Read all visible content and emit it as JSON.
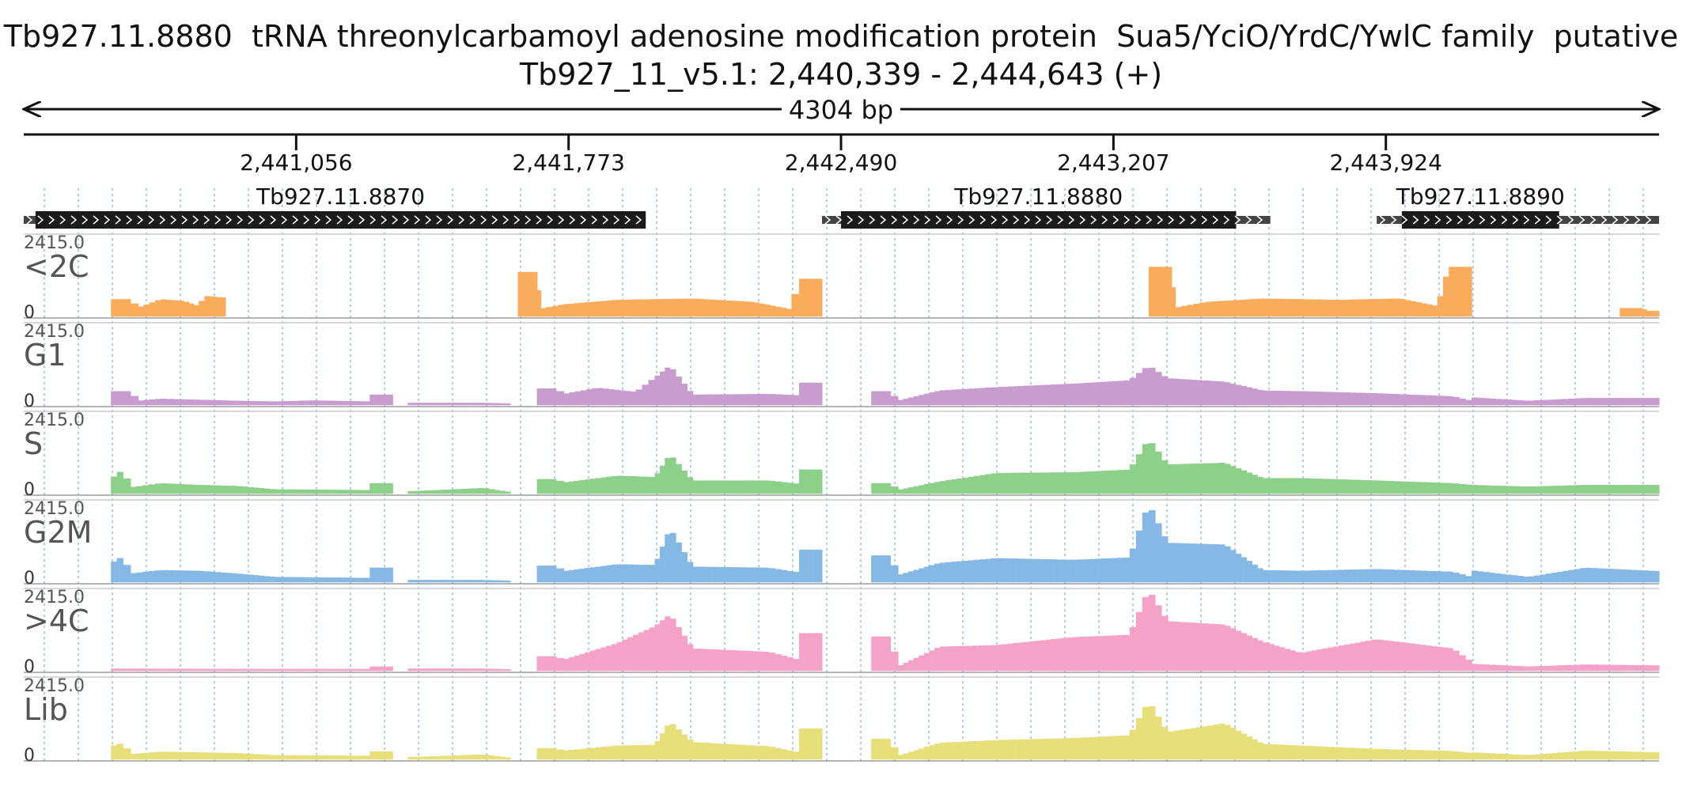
{
  "header": {
    "title": "Tb927.11.8880  tRNA threonylcarbamoyl adenosine modification protein  Sua5/YciO/YrdC/YwlC family  putative",
    "location": "Tb927_11_v5.1: 2,440,339 - 2,444,643 (+)"
  },
  "chart_data": {
    "type": "area",
    "title": "Tb927.11.8880  tRNA threonylcarbamoyl adenosine modification protein  Sua5/YciO/YrdC/YwlC family  putative",
    "region": {
      "chrom": "Tb927_11_v5.1",
      "start": 2440339,
      "end": 2444643,
      "strand": "+",
      "length_label": "4304 bp"
    },
    "x_ticks": [
      {
        "value": 2441056,
        "label": "2,441,056"
      },
      {
        "value": 2441773,
        "label": "2,441,773"
      },
      {
        "value": 2442490,
        "label": "2,442,490"
      },
      {
        "value": 2443207,
        "label": "2,443,207"
      },
      {
        "value": 2443924,
        "label": "2,443,924"
      }
    ],
    "genes": [
      {
        "name": "Tb927.11.8870",
        "start": 2440339,
        "end": 2441976,
        "cds_start": 2440370,
        "cds_end": 2441976
      },
      {
        "name": "Tb927.11.8880",
        "start": 2442440,
        "end": 2443620,
        "cds_start": 2442490,
        "cds_end": 2443530
      },
      {
        "name": "Tb927.11.8890",
        "start": 2443900,
        "end": 2444643,
        "cds_start": 2443966,
        "cds_end": 2444380
      }
    ],
    "ylim": [
      0,
      2415.0
    ],
    "y_max_label": "2415.0",
    "y_min_label": "0",
    "series": [
      {
        "name": "<2C",
        "color": "#f9ad5c",
        "segments": [
          {
            "x": [
              2440569,
              2440620,
              2440640,
              2440700,
              2440760,
              2440800,
              2440815,
              2440860,
              2440870
            ],
            "y": [
              500,
              500,
              250,
              500,
              450,
              300,
              600,
              550,
              550
            ]
          },
          {
            "x": [
              2441640,
              2441690,
              2441700,
              2441760,
              2441900,
              2442100,
              2442260,
              2442360,
              2442380,
              2442440
            ],
            "y": [
              1300,
              1300,
              220,
              350,
              480,
              520,
              420,
              200,
              1100,
              1100
            ]
          },
          {
            "x": [
              2443300,
              2443360,
              2443370,
              2443450,
              2443600,
              2443800,
              2443960,
              2444060,
              2444090,
              2444150
            ],
            "y": [
              1450,
              1450,
              250,
              420,
              520,
              480,
              520,
              300,
              1450,
              1450
            ]
          },
          {
            "x": [
              2444540,
              2444600,
              2444610,
              2444643
            ],
            "y": [
              240,
              240,
              160,
              160
            ]
          }
        ]
      },
      {
        "name": "G1",
        "color": "#c99cd0",
        "segments": [
          {
            "x": [
              2440569,
              2440620,
              2440640,
              2440700,
              2440800,
              2440900,
              2441000,
              2441100,
              2441250
            ],
            "y": [
              400,
              400,
              120,
              180,
              150,
              120,
              100,
              130,
              100
            ]
          },
          {
            "x": [
              2441250,
              2441310
            ],
            "y": [
              300,
              300
            ]
          },
          {
            "x": [
              2441350,
              2441550,
              2441620
            ],
            "y": [
              60,
              60,
              40
            ]
          },
          {
            "x": [
              2441690,
              2441740,
              2441760,
              2441850,
              2441950,
              2442000,
              2442040,
              2442100,
              2442300,
              2442380
            ],
            "y": [
              480,
              480,
              320,
              500,
              380,
              800,
              1150,
              300,
              320,
              280
            ]
          },
          {
            "x": [
              2442380,
              2442440
            ],
            "y": [
              650,
              650
            ]
          },
          {
            "x": [
              2442570,
              2442620,
              2442640,
              2442750,
              2442900,
              2443100,
              2443250,
              2443300,
              2443350,
              2443500,
              2443600,
              2443700,
              2443900,
              2444100,
              2444150
            ],
            "y": [
              400,
              400,
              120,
              420,
              520,
              620,
              720,
              1150,
              780,
              680,
              420,
              400,
              340,
              250,
              120
            ]
          },
          {
            "x": [
              2444150,
              2444300,
              2444450,
              2444643
            ],
            "y": [
              220,
              120,
              200,
              200
            ]
          }
        ]
      },
      {
        "name": "S",
        "color": "#8dd08a",
        "segments": [
          {
            "x": [
              2440569,
              2440600,
              2440620,
              2440700,
              2440800,
              2440900,
              2441000,
              2441250
            ],
            "y": [
              420,
              700,
              180,
              300,
              250,
              220,
              120,
              100
            ]
          },
          {
            "x": [
              2441250,
              2441310
            ],
            "y": [
              300,
              300
            ]
          },
          {
            "x": [
              2441350,
              2441550,
              2441620
            ],
            "y": [
              60,
              160,
              40
            ]
          },
          {
            "x": [
              2441690,
              2441740,
              2441760,
              2441900,
              2442000,
              2442040,
              2442100,
              2442300,
              2442380
            ],
            "y": [
              420,
              420,
              320,
              520,
              480,
              1150,
              380,
              380,
              280
            ]
          },
          {
            "x": [
              2442380,
              2442440
            ],
            "y": [
              700,
              700
            ]
          },
          {
            "x": [
              2442570,
              2442620,
              2442640,
              2442750,
              2442900,
              2443100,
              2443250,
              2443300,
              2443350,
              2443500,
              2443600,
              2443700,
              2443900,
              2444100,
              2444150
            ],
            "y": [
              300,
              300,
              100,
              350,
              600,
              620,
              700,
              1600,
              850,
              900,
              450,
              450,
              380,
              300,
              250
            ]
          },
          {
            "x": [
              2444150,
              2444300,
              2444450,
              2444643
            ],
            "y": [
              250,
              200,
              250,
              250
            ]
          }
        ]
      },
      {
        "name": "G2M",
        "color": "#85b8e4",
        "segments": [
          {
            "x": [
              2440569,
              2440600,
              2440620,
              2440700,
              2440800,
              2440900,
              2441000,
              2441250
            ],
            "y": [
              550,
              750,
              250,
              350,
              330,
              250,
              150,
              120
            ]
          },
          {
            "x": [
              2441250,
              2441310
            ],
            "y": [
              420,
              420
            ]
          },
          {
            "x": [
              2441350,
              2441550,
              2441620
            ],
            "y": [
              60,
              60,
              40
            ]
          },
          {
            "x": [
              2441690,
              2441740,
              2441760,
              2441900,
              2442000,
              2442040,
              2442100,
              2442300,
              2442380
            ],
            "y": [
              480,
              480,
              320,
              520,
              500,
              1580,
              450,
              420,
              280
            ]
          },
          {
            "x": [
              2442380,
              2442440
            ],
            "y": [
              950,
              950
            ]
          },
          {
            "x": [
              2442570,
              2442620,
              2442640,
              2442750,
              2442900,
              2443100,
              2443250,
              2443300,
              2443350,
              2443500,
              2443600,
              2443700,
              2443900,
              2444100,
              2444150
            ],
            "y": [
              780,
              780,
              200,
              560,
              700,
              650,
              720,
              2300,
              1150,
              1100,
              350,
              330,
              380,
              300,
              150
            ]
          },
          {
            "x": [
              2444150,
              2444300,
              2444450,
              2444643
            ],
            "y": [
              340,
              150,
              420,
              320
            ]
          }
        ]
      },
      {
        "name": ">4C",
        "color": "#f4a2c8",
        "segments": [
          {
            "x": [
              2440569,
              2440900,
              2441250
            ],
            "y": [
              60,
              50,
              50
            ]
          },
          {
            "x": [
              2441250,
              2441310
            ],
            "y": [
              120,
              120
            ]
          },
          {
            "x": [
              2441350,
              2441550,
              2441620
            ],
            "y": [
              60,
              60,
              40
            ]
          },
          {
            "x": [
              2441690,
              2441740,
              2441760,
              2441900,
              2442000,
              2442040,
              2442100,
              2442300,
              2442380
            ],
            "y": [
              420,
              420,
              320,
              800,
              1300,
              1650,
              650,
              550,
              320
            ]
          },
          {
            "x": [
              2442380,
              2442440
            ],
            "y": [
              1100,
              1100
            ]
          },
          {
            "x": [
              2442570,
              2442620,
              2442640,
              2442750,
              2442900,
              2443100,
              2443250,
              2443300,
              2443350,
              2443500,
              2443600,
              2443700,
              2443900,
              2444100,
              2444150
            ],
            "y": [
              1000,
              1000,
              120,
              700,
              750,
              980,
              1050,
              2380,
              1450,
              1350,
              850,
              520,
              920,
              650,
              250
            ]
          },
          {
            "x": [
              2444150,
              2444300,
              2444450,
              2444643
            ],
            "y": [
              200,
              120,
              180,
              150
            ]
          }
        ]
      },
      {
        "name": "Lib",
        "color": "#e6df7a",
        "segments": [
          {
            "x": [
              2440569,
              2440600,
              2440620,
              2440700,
              2440800,
              2440900,
              2441000,
              2441250
            ],
            "y": [
              380,
              480,
              150,
              220,
              200,
              180,
              120,
              100
            ]
          },
          {
            "x": [
              2441250,
              2441310
            ],
            "y": [
              230,
              230
            ]
          },
          {
            "x": [
              2441350,
              2441550,
              2441620
            ],
            "y": [
              60,
              140,
              40
            ]
          },
          {
            "x": [
              2441690,
              2441740,
              2441760,
              2441900,
              2442000,
              2442040,
              2442100,
              2442300,
              2442380
            ],
            "y": [
              320,
              320,
              250,
              400,
              420,
              1100,
              500,
              380,
              200
            ]
          },
          {
            "x": [
              2442380,
              2442440
            ],
            "y": [
              900,
              900
            ]
          },
          {
            "x": [
              2442570,
              2442620,
              2442640,
              2442750,
              2442900,
              2443100,
              2443250,
              2443300,
              2443350,
              2443500,
              2443600,
              2443700,
              2443900,
              2444100,
              2444150
            ],
            "y": [
              600,
              600,
              100,
              480,
              560,
              620,
              700,
              1700,
              800,
              1050,
              450,
              400,
              300,
              240,
              180
            ]
          },
          {
            "x": [
              2444150,
              2444300,
              2444450,
              2444643
            ],
            "y": [
              200,
              120,
              250,
              200
            ]
          }
        ]
      }
    ],
    "grid": true
  }
}
